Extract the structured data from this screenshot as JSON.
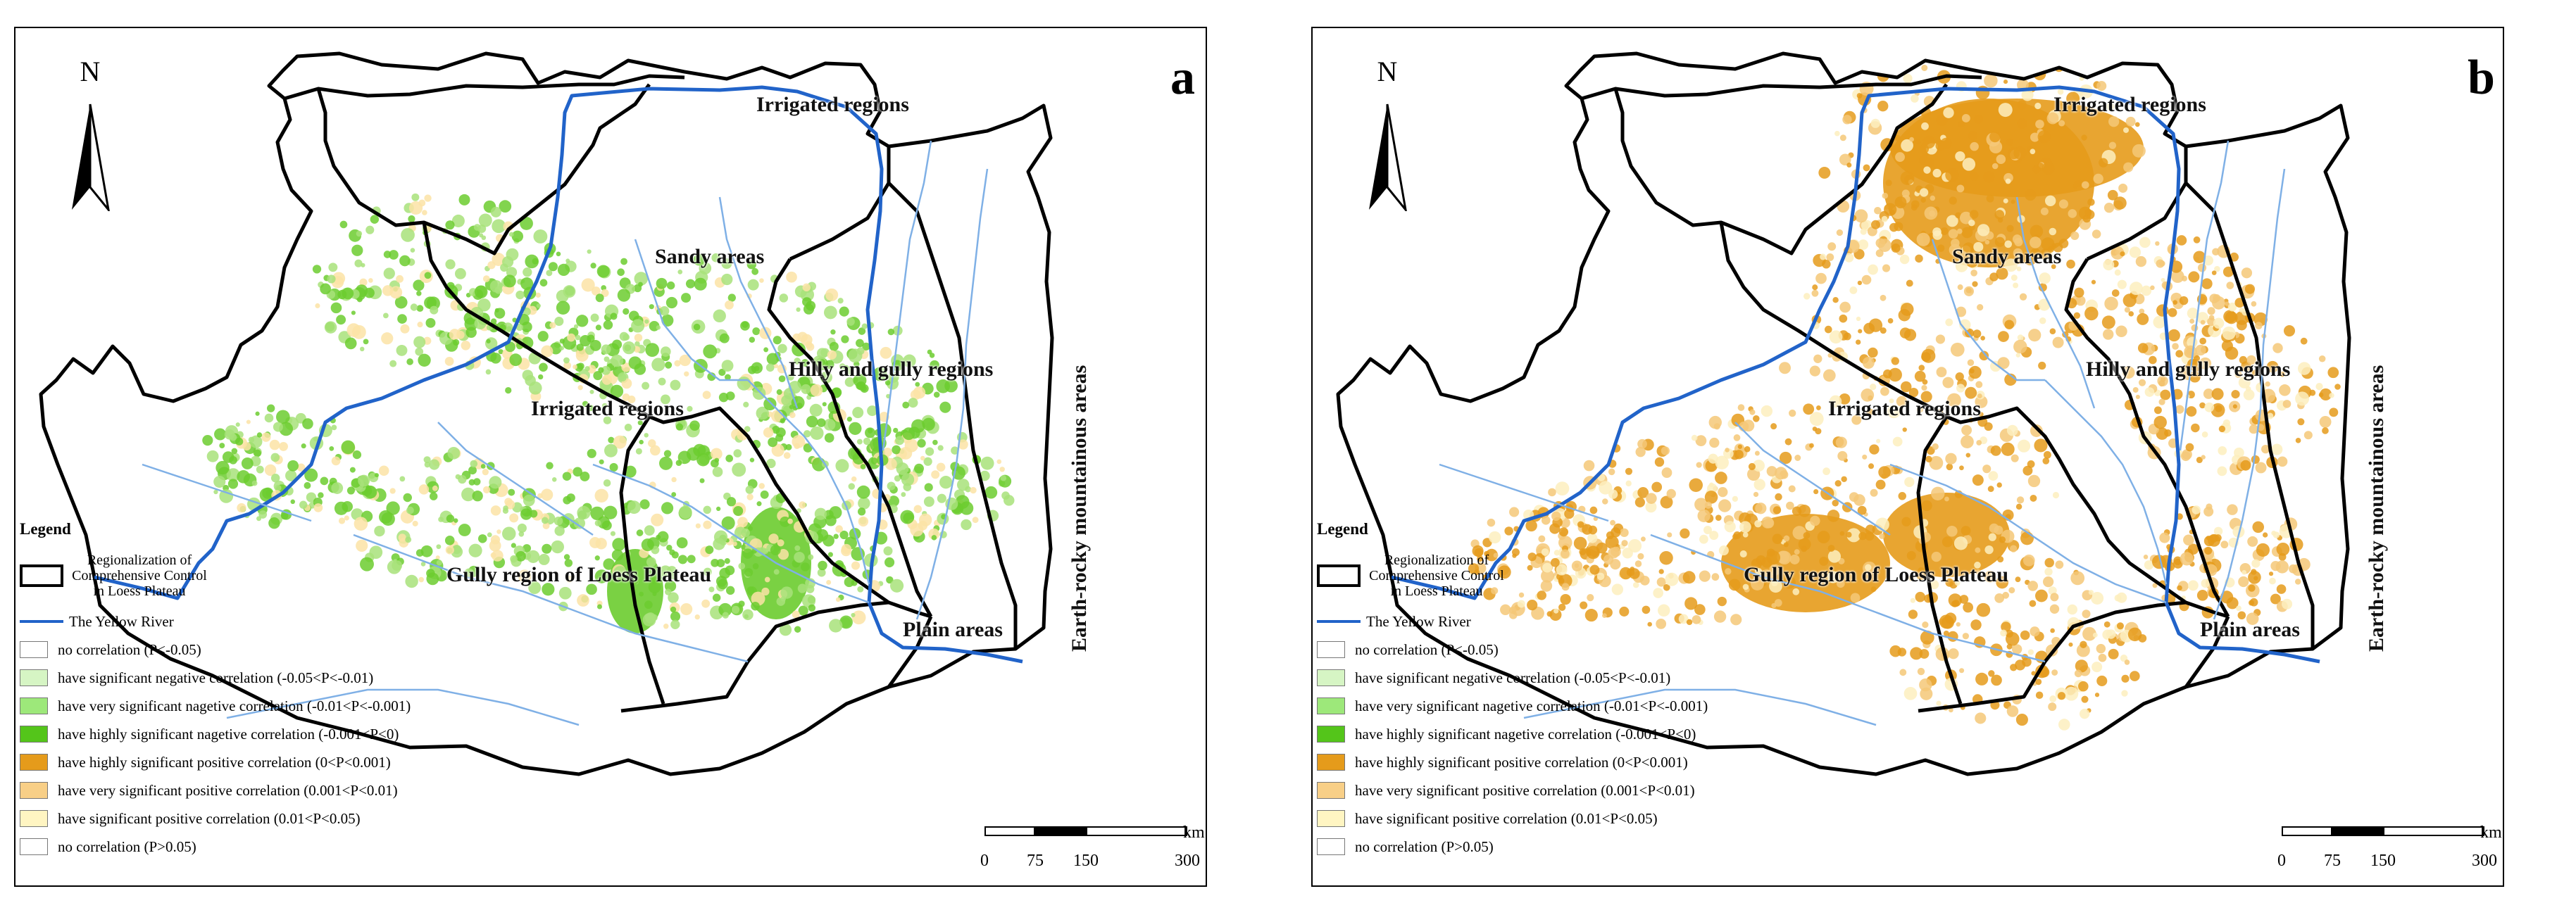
{
  "north_label": "N",
  "panels": [
    {
      "letter": "a",
      "fill": "#6ccc2f",
      "fill_secondary": "#a8e27a",
      "speckle": "#fce3a6"
    },
    {
      "letter": "b",
      "fill": "#e59b1b",
      "fill_secondary": "#f5c878",
      "speckle": "#fdeebe"
    }
  ],
  "regions": {
    "irrigated_north": "Irrigated regions",
    "sandy": "Sandy areas",
    "hilly": "Hilly and gully regions",
    "irrigated_west": "Irrigated regions",
    "earth_rocky": "Earth-rocky mountainous areas",
    "gully_loess": "Gully region of Loess Plateau",
    "plain": "Plain areas"
  },
  "legend": {
    "title": "Legend",
    "boundary": "Regionalization of Comprehensive Control in Loess Plateau",
    "river": "The Yellow River",
    "items": [
      {
        "label": "no correlation  (P<-0.05)",
        "color": "#ffffff"
      },
      {
        "label": "have significant negative correlation (-0.05<P<-0.01)",
        "color": "#d6f5c4"
      },
      {
        "label": "have very significant nagetive correlation (-0.01<P<-0.001)",
        "color": "#9de87a"
      },
      {
        "label": "have highly significant nagetive correlation (-0.001<P<0)",
        "color": "#54c51a"
      },
      {
        "label": "have highly significant positive correlation (0<P<0.001)",
        "color": "#e59b1b"
      },
      {
        "label": "have very significant positive correlation (0.001<P<0.01)",
        "color": "#f8cf87"
      },
      {
        "label": "have significant positive correlation (0.01<P<0.05)",
        "color": "#fff5c2"
      },
      {
        "label": "no correlation  (P>0.05)",
        "color": "#ffffff"
      }
    ]
  },
  "scale": {
    "unit": "km",
    "ticks": [
      "0",
      "75",
      "150",
      "300"
    ]
  },
  "colors": {
    "boundary": "#000000",
    "river": "#2163c9",
    "tributary": "#7fb0e6"
  }
}
